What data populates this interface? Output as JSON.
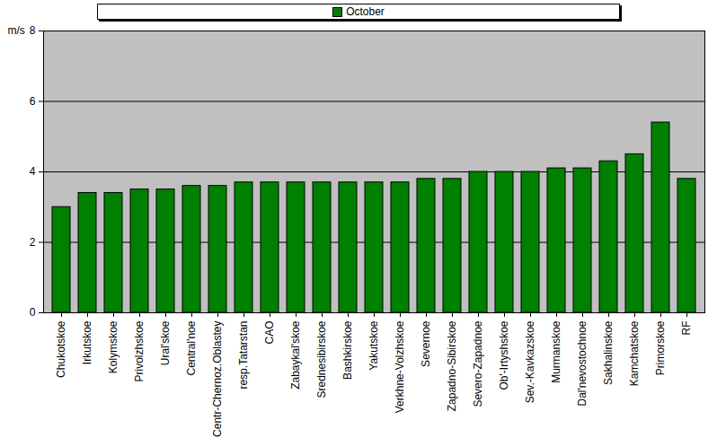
{
  "chart_data": {
    "type": "bar",
    "y_label": "m/s",
    "categories": [
      "Chukotskoe",
      "Irkutskoe",
      "Kolymskoe",
      "Privolzhskoe",
      "Ural'skoe",
      "Central'noe",
      "Centr-Chernoz.Oblastey",
      "resp.Tatarstan",
      "CAO",
      "Zabaykal'skoe",
      "Srednesibirskoe",
      "Bashkirskoe",
      "Yakutskoe",
      "Verkhne-Volzhskoe",
      "Severnoe",
      "Zapadno-Sibirskoe",
      "Severo-Zapadnoe",
      "Ob'-Irtyshskoe",
      "Sev.-Kavkazskoe",
      "Murmanskoe",
      "Dal'nevostochnoe",
      "Sakhalinskoe",
      "Kamchatskoe",
      "Primorskoe",
      "RF"
    ],
    "series": [
      {
        "name": "October",
        "color": "#008000",
        "values": [
          3.0,
          3.4,
          3.4,
          3.5,
          3.5,
          3.6,
          3.6,
          3.7,
          3.7,
          3.7,
          3.7,
          3.7,
          3.7,
          3.7,
          3.8,
          3.8,
          4.0,
          4.0,
          4.0,
          4.1,
          4.1,
          4.3,
          4.5,
          5.4,
          3.8
        ]
      }
    ],
    "ylim": [
      0,
      8
    ],
    "yticks": [
      0,
      2,
      4,
      6,
      8
    ],
    "grid": true,
    "legend": "top"
  }
}
